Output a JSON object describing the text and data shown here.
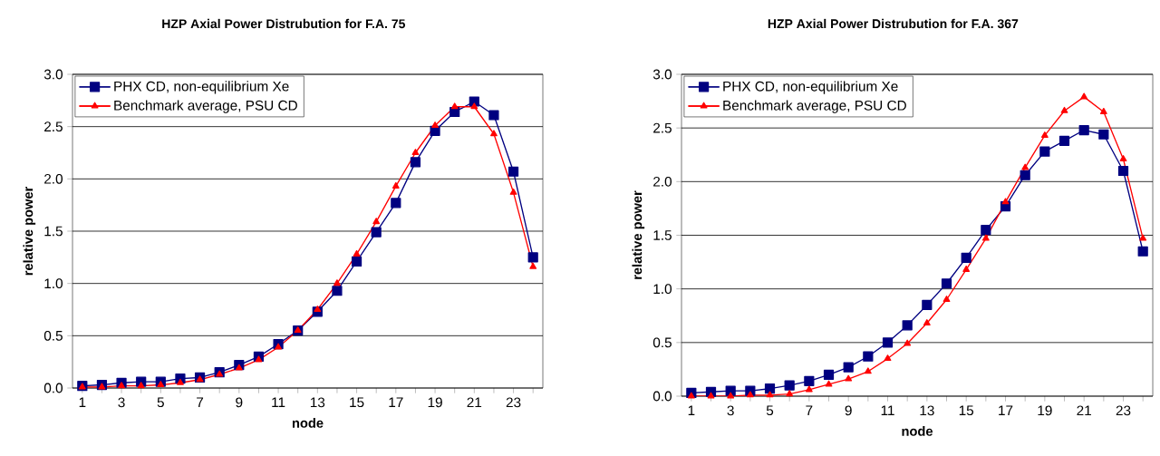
{
  "chart_data": [
    {
      "type": "line",
      "title": "HZP Axial Power Distrubution for F.A. 75",
      "xlabel": "node",
      "ylabel": "relative power",
      "categories": [
        "1",
        null,
        "3",
        null,
        "5",
        null,
        "7",
        null,
        "9",
        null,
        "11",
        null,
        "13",
        null,
        "15",
        null,
        "17",
        null,
        "19",
        null,
        "21",
        null,
        "23",
        null
      ],
      "ylim": [
        0,
        3
      ],
      "yticks": [
        {
          "value": 0,
          "label": "0.0"
        },
        {
          "value": 0.5,
          "label": "0.5"
        },
        {
          "value": 1,
          "label": "1.0"
        },
        {
          "value": 1.5,
          "label": "1.5"
        },
        {
          "value": 2,
          "label": "2.0"
        },
        {
          "value": 2.5,
          "label": "2.5"
        },
        {
          "value": 3,
          "label": "3.0"
        }
      ],
      "grid": "y",
      "legend": "top left",
      "series": [
        {
          "name": "PHX CD, non-equilibrium Xe",
          "color": "#000080",
          "marker": "square",
          "values": [
            0.02,
            0.03,
            0.05,
            0.06,
            0.06,
            0.09,
            0.1,
            0.15,
            0.22,
            0.3,
            0.42,
            0.55,
            0.73,
            0.93,
            1.21,
            1.49,
            1.77,
            2.16,
            2.46,
            2.64,
            2.74,
            2.61,
            2.07,
            1.25
          ]
        },
        {
          "name": "Benchmark average, PSU CD",
          "color": "#ff0000",
          "marker": "triangle",
          "values": [
            0.01,
            0.01,
            0.02,
            0.02,
            0.03,
            0.05,
            0.08,
            0.13,
            0.19,
            0.27,
            0.39,
            0.55,
            0.75,
            1.0,
            1.28,
            1.59,
            1.93,
            2.25,
            2.51,
            2.69,
            2.69,
            2.43,
            1.87,
            1.16
          ]
        }
      ]
    },
    {
      "type": "line",
      "title": "HZP Axial Power Distrubution for F.A. 367",
      "xlabel": "node",
      "ylabel": "relative power",
      "categories": [
        "1",
        null,
        "3",
        null,
        "5",
        null,
        "7",
        null,
        "9",
        null,
        "11",
        null,
        "13",
        null,
        "15",
        null,
        "17",
        null,
        "19",
        null,
        "21",
        null,
        "23",
        null
      ],
      "ylim": [
        0,
        3
      ],
      "yticks": [
        {
          "value": 0,
          "label": "0.0"
        },
        {
          "value": 0.5,
          "label": "0.5"
        },
        {
          "value": 1,
          "label": "1.0"
        },
        {
          "value": 1.5,
          "label": "1.5"
        },
        {
          "value": 2,
          "label": "2.0"
        },
        {
          "value": 2.5,
          "label": "2.5"
        },
        {
          "value": 3,
          "label": "3.0"
        }
      ],
      "grid": "y",
      "legend": "top left",
      "series": [
        {
          "name": "PHX CD, non-equilibrium Xe",
          "color": "#000080",
          "marker": "square",
          "values": [
            0.03,
            0.04,
            0.05,
            0.05,
            0.07,
            0.1,
            0.14,
            0.2,
            0.27,
            0.37,
            0.5,
            0.66,
            0.85,
            1.05,
            1.29,
            1.55,
            1.77,
            2.06,
            2.28,
            2.38,
            2.48,
            2.44,
            2.1,
            1.35
          ]
        },
        {
          "name": "Benchmark average, PSU CD",
          "color": "#ff0000",
          "marker": "triangle",
          "values": [
            0.0,
            0.0,
            0.0,
            0.01,
            0.01,
            0.02,
            0.06,
            0.11,
            0.16,
            0.23,
            0.35,
            0.49,
            0.68,
            0.9,
            1.18,
            1.47,
            1.81,
            2.13,
            2.43,
            2.66,
            2.79,
            2.65,
            2.21,
            1.47
          ]
        }
      ]
    }
  ]
}
